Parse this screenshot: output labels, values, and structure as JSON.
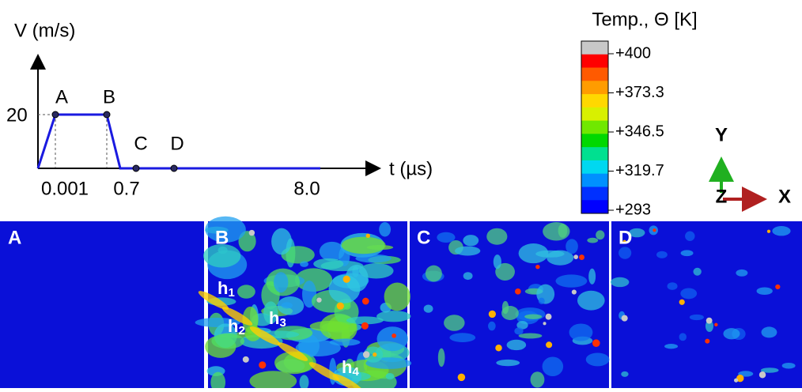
{
  "velocity_plot": {
    "y_label": "V (m/s)",
    "x_label": "t (µs)",
    "y_tick": "20",
    "x_ticks": [
      "0.001",
      "0.7",
      "8.0"
    ],
    "points": [
      "A",
      "B",
      "C",
      "D"
    ]
  },
  "colorbar": {
    "title": "Temp., Θ [K]",
    "labels": [
      "+400",
      "+373.3",
      "+346.5",
      "+319.7",
      "+293"
    ],
    "colors": [
      "#c8c8c8",
      "#ff0000",
      "#ff5a00",
      "#ff9c00",
      "#ffd800",
      "#d8f000",
      "#70e800",
      "#00d800",
      "#00e090",
      "#00d8f0",
      "#0090ff",
      "#0030ff",
      "#0000ff"
    ]
  },
  "axes_triad": {
    "y": "Y",
    "z": "Z",
    "x": "X"
  },
  "panels": [
    {
      "label": "A"
    },
    {
      "label": "B"
    },
    {
      "label": "C"
    },
    {
      "label": "D"
    }
  ],
  "hotspots": [
    {
      "letter": "h",
      "index": "1"
    },
    {
      "letter": "h",
      "index": "2"
    },
    {
      "letter": "h",
      "index": "3"
    },
    {
      "letter": "h",
      "index": "4"
    }
  ]
}
